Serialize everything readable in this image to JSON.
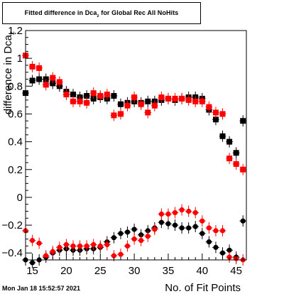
{
  "title": {
    "text": "Fitted difference in Dca",
    "sub": "z",
    "suffix": " for Global Rec All NoHits"
  },
  "footer": "Mon Jan 18 15:52:57 2021",
  "colors": {
    "black_series": "#000000",
    "red_series": "#ff0000",
    "frame": "#000000"
  },
  "chart_data": {
    "type": "scatter",
    "xlabel": "No. of Fit Points",
    "ylabel": "difference in Dca_z",
    "xlim": [
      14,
      46.5
    ],
    "ylim": [
      -0.45,
      1.2
    ],
    "xticks": [
      15,
      20,
      25,
      30,
      35,
      40,
      45
    ],
    "yticks": [
      -0.4,
      -0.2,
      0,
      0.2,
      0.4,
      0.6,
      0.8,
      1,
      1.2
    ],
    "ytick_labels": [
      "−0.4",
      "−0.2",
      "0",
      "0.2",
      "0.4",
      "0.6",
      "0.8",
      "1",
      "1.2"
    ],
    "grid": false,
    "series": [
      {
        "color": "#000000",
        "marker": "square",
        "x": [
          14,
          15,
          16,
          17,
          18,
          19,
          20,
          21,
          22,
          23,
          24,
          25,
          26,
          27,
          28,
          29,
          30,
          31,
          32,
          33,
          34,
          35,
          36,
          37,
          38,
          39,
          40,
          41,
          42,
          43,
          44,
          45,
          46
        ],
        "y": [
          0.75,
          0.84,
          0.85,
          0.85,
          0.82,
          0.8,
          0.76,
          0.74,
          0.72,
          0.73,
          0.71,
          0.72,
          0.71,
          0.73,
          0.67,
          0.68,
          0.69,
          0.68,
          0.69,
          0.69,
          0.7,
          0.71,
          0.7,
          0.71,
          0.72,
          0.72,
          0.71,
          0.63,
          0.56,
          0.44,
          0.4,
          0.32,
          0.55
        ]
      },
      {
        "color": "#ff0000",
        "marker": "square",
        "x": [
          14,
          15,
          16,
          17,
          18,
          19,
          20,
          21,
          22,
          23,
          24,
          25,
          26,
          27,
          28,
          29,
          30,
          31,
          32,
          33,
          34,
          35,
          36,
          37,
          38,
          39,
          40,
          41,
          42,
          43,
          44,
          45,
          46
        ],
        "y": [
          1.02,
          0.94,
          0.93,
          0.81,
          0.86,
          0.83,
          0.74,
          0.69,
          0.69,
          0.68,
          0.75,
          0.73,
          0.74,
          0.59,
          0.6,
          0.66,
          0.72,
          0.67,
          0.61,
          0.66,
          0.72,
          0.71,
          0.71,
          0.71,
          0.7,
          0.69,
          0.69,
          0.65,
          0.61,
          0.6,
          0.28,
          0.24,
          0.2
        ]
      },
      {
        "color": "#000000",
        "marker": "circle",
        "x": [
          14,
          15,
          16,
          17,
          18,
          19,
          20,
          21,
          22,
          23,
          24,
          25,
          26,
          27,
          28,
          29,
          30,
          31,
          32,
          33,
          34,
          35,
          36,
          37,
          38,
          39,
          40,
          41,
          42,
          43,
          44,
          45,
          46
        ],
        "y": [
          -0.45,
          -0.47,
          -0.45,
          -0.43,
          -0.4,
          -0.38,
          -0.37,
          -0.38,
          -0.38,
          -0.37,
          -0.37,
          -0.36,
          -0.32,
          -0.29,
          -0.26,
          -0.25,
          -0.23,
          -0.27,
          -0.24,
          -0.22,
          -0.18,
          -0.19,
          -0.2,
          -0.22,
          -0.22,
          -0.21,
          -0.26,
          -0.32,
          -0.36,
          -0.4,
          -0.38,
          -0.43,
          -0.17
        ]
      },
      {
        "color": "#ff0000",
        "marker": "circle",
        "x": [
          14,
          15,
          16,
          17,
          18,
          19,
          20,
          21,
          22,
          23,
          24,
          25,
          26,
          27,
          28,
          29,
          30,
          31,
          32,
          33,
          34,
          35,
          36,
          37,
          38,
          39,
          40,
          41,
          42,
          43,
          44,
          45,
          46
        ],
        "y": [
          -0.24,
          -0.31,
          -0.33,
          -0.42,
          -0.39,
          -0.36,
          -0.34,
          -0.35,
          -0.35,
          -0.35,
          -0.34,
          -0.35,
          -0.34,
          -0.42,
          -0.41,
          -0.35,
          -0.3,
          -0.31,
          -0.28,
          -0.23,
          -0.12,
          -0.12,
          -0.11,
          -0.09,
          -0.1,
          -0.11,
          -0.17,
          -0.22,
          -0.24,
          -0.24,
          -0.43,
          -0.44,
          -0.45
        ]
      }
    ]
  }
}
